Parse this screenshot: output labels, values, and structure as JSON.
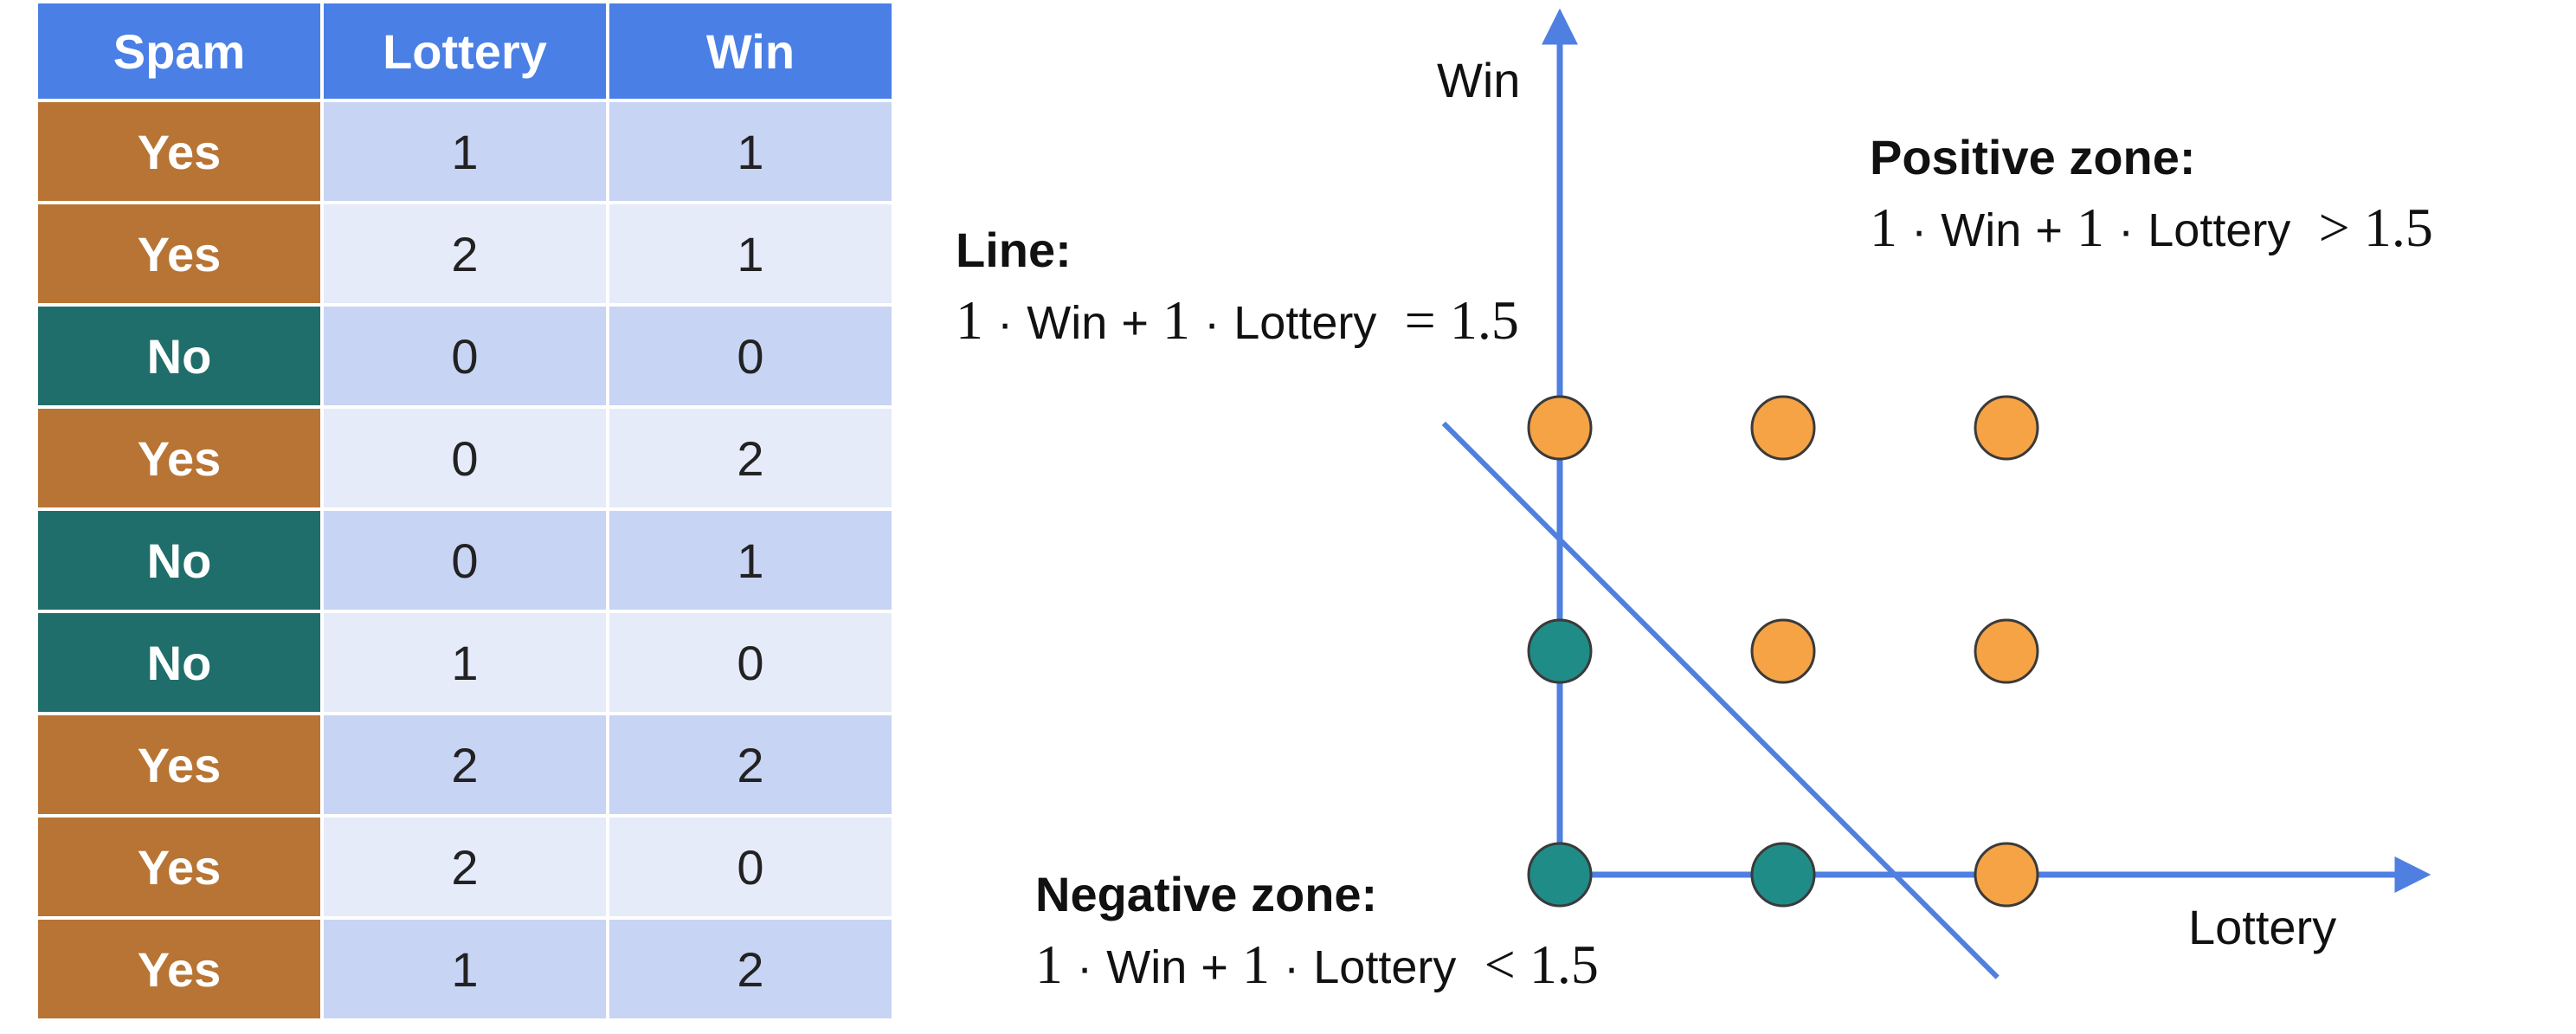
{
  "table": {
    "headers": [
      "Spam",
      "Lottery",
      "Win"
    ],
    "rows": [
      {
        "spam": "Yes",
        "lottery": "1",
        "win": "1"
      },
      {
        "spam": "Yes",
        "lottery": "2",
        "win": "1"
      },
      {
        "spam": "No",
        "lottery": "0",
        "win": "0"
      },
      {
        "spam": "Yes",
        "lottery": "0",
        "win": "2"
      },
      {
        "spam": "No",
        "lottery": "0",
        "win": "1"
      },
      {
        "spam": "No",
        "lottery": "1",
        "win": "0"
      },
      {
        "spam": "Yes",
        "lottery": "2",
        "win": "2"
      },
      {
        "spam": "Yes",
        "lottery": "2",
        "win": "0"
      },
      {
        "spam": "Yes",
        "lottery": "1",
        "win": "2"
      }
    ]
  },
  "colors": {
    "header_bg": "#4a7fe6",
    "yes_bg": "#b87434",
    "no_bg": "#1f6e6b",
    "row_odd_bg": "#c8d4f4",
    "row_even_bg": "#e6ebfa",
    "axis": "#4f7fe0",
    "point_yes": "#f5a345",
    "point_no": "#1f8c88"
  },
  "plot": {
    "x_axis_label": "Lottery",
    "y_axis_label": "Win",
    "points": [
      {
        "lottery": 0,
        "win": 2,
        "spam": "Yes"
      },
      {
        "lottery": 1,
        "win": 2,
        "spam": "Yes"
      },
      {
        "lottery": 2,
        "win": 2,
        "spam": "Yes"
      },
      {
        "lottery": 0,
        "win": 1,
        "spam": "No"
      },
      {
        "lottery": 1,
        "win": 1,
        "spam": "Yes"
      },
      {
        "lottery": 2,
        "win": 1,
        "spam": "Yes"
      },
      {
        "lottery": 0,
        "win": 0,
        "spam": "No"
      },
      {
        "lottery": 1,
        "win": 0,
        "spam": "No"
      },
      {
        "lottery": 2,
        "win": 0,
        "spam": "Yes"
      }
    ],
    "line": {
      "a": 1,
      "b": 1,
      "threshold": 1.5
    }
  },
  "annotations": {
    "line": {
      "title": "Line:",
      "c1": "1",
      "w1": "Win",
      "plus": "+",
      "c2": "1",
      "w2": "Lottery",
      "rel": "=",
      "rhs": "1.5"
    },
    "positive": {
      "title": "Positive zone:",
      "c1": "1",
      "w1": "Win",
      "plus": "+",
      "c2": "1",
      "w2": "Lottery",
      "rel": ">",
      "rhs": "1.5"
    },
    "negative": {
      "title": "Negative zone:",
      "c1": "1",
      "w1": "Win",
      "plus": "+",
      "c2": "1",
      "w2": "Lottery",
      "rel": "<",
      "rhs": "1.5"
    }
  }
}
